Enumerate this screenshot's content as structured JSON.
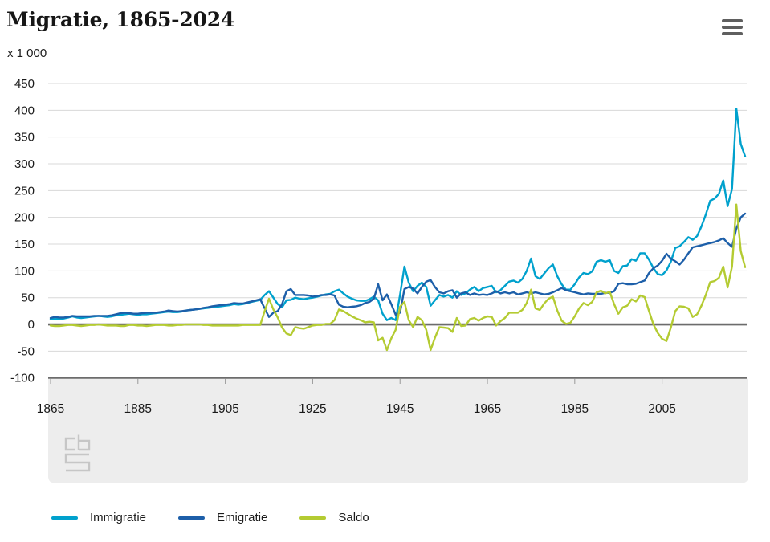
{
  "header": {
    "title": "Migratie, 1865-2024"
  },
  "icons": {
    "context_menu": "hamburger-icon",
    "watermark": "cbs-logo"
  },
  "palette": {
    "grid_line": "#d8d8d8",
    "zero_line": "#6c6c6c",
    "axis_line": "#6c6c6c",
    "tick_mark": "#999999",
    "footer_band": "#ededed",
    "logo_gray": "#c6c6c6",
    "text": "#1a1a1a"
  },
  "chart_data": {
    "type": "line",
    "title": "Migratie, 1865-2024",
    "y_unit_label": "x 1 000",
    "xlabel": "",
    "ylabel": "x 1 000",
    "ylim": [
      -100,
      450
    ],
    "grid": true,
    "legend_position": "bottom",
    "year_start": 1865,
    "year_end": 2024,
    "year_step": 1,
    "xticks": [
      1865,
      1885,
      1905,
      1925,
      1945,
      1965,
      1985,
      2005
    ],
    "yticks": [
      450,
      400,
      350,
      300,
      250,
      200,
      150,
      100,
      50,
      0,
      -50,
      -100
    ],
    "series": [
      {
        "name": "Immigratie",
        "color": "#00a1cd",
        "values": [
          10,
          11,
          10,
          11,
          13,
          15,
          13,
          12,
          13,
          14,
          15,
          16,
          15,
          14,
          15,
          17,
          18,
          19,
          20,
          19,
          18,
          19,
          19,
          20,
          21,
          22,
          23,
          24,
          23,
          23,
          24,
          26,
          27,
          28,
          29,
          30,
          31,
          32,
          33,
          34,
          35,
          36,
          38,
          37,
          38,
          40,
          42,
          44,
          46,
          55,
          62,
          50,
          38,
          32,
          45,
          46,
          50,
          48,
          47,
          49,
          50,
          52,
          54,
          56,
          57,
          62,
          65,
          58,
          52,
          48,
          45,
          44,
          44,
          47,
          52,
          45,
          20,
          8,
          12,
          8,
          55,
          108,
          78,
          62,
          72,
          78,
          70,
          35,
          45,
          55,
          52,
          55,
          50,
          62,
          55,
          58,
          65,
          70,
          62,
          68,
          70,
          72,
          60,
          64,
          72,
          80,
          82,
          78,
          85,
          100,
          123,
          90,
          85,
          95,
          105,
          112,
          90,
          75,
          65,
          65,
          75,
          88,
          96,
          94,
          99,
          117,
          120,
          117,
          120,
          100,
          96,
          109,
          110,
          122,
          119,
          133,
          133,
          121,
          105,
          94,
          92,
          101,
          117,
          143,
          146,
          154,
          163,
          158,
          165,
          183,
          205,
          231,
          235,
          244,
          269,
          221,
          253,
          403,
          337,
          314
        ]
      },
      {
        "name": "Emigratie",
        "color": "#1d5fa9",
        "values": [
          12,
          14,
          13,
          13,
          14,
          16,
          15,
          15,
          15,
          15,
          16,
          16,
          16,
          16,
          17,
          19,
          21,
          22,
          21,
          20,
          20,
          21,
          22,
          22,
          22,
          23,
          24,
          26,
          25,
          24,
          25,
          26,
          27,
          28,
          29,
          31,
          32,
          34,
          35,
          36,
          37,
          38,
          40,
          39,
          39,
          41,
          43,
          45,
          47,
          30,
          14,
          22,
          25,
          38,
          62,
          66,
          55,
          55,
          55,
          54,
          52,
          53,
          55,
          55,
          56,
          54,
          37,
          33,
          32,
          33,
          34,
          36,
          40,
          42,
          48,
          75,
          45,
          56,
          38,
          18,
          22,
          66,
          70,
          67,
          58,
          70,
          80,
          83,
          70,
          60,
          58,
          62,
          64,
          50,
          58,
          60,
          55,
          58,
          55,
          56,
          55,
          58,
          62,
          58,
          60,
          58,
          60,
          56,
          58,
          60,
          58,
          60,
          58,
          56,
          57,
          60,
          64,
          68,
          64,
          62,
          60,
          58,
          56,
          58,
          57,
          57,
          57,
          59,
          59,
          62,
          76,
          77,
          75,
          75,
          76,
          79,
          82,
          96,
          105,
          110,
          119,
          132,
          123,
          118,
          112,
          121,
          133,
          144,
          146,
          148,
          150,
          152,
          154,
          157,
          161,
          152,
          145,
          179,
          200,
          207
        ]
      },
      {
        "name": "Saldo",
        "color": "#b4cb32",
        "values": [
          -2,
          -3,
          -3,
          -2,
          -1,
          -1,
          -2,
          -3,
          -2,
          -1,
          -1,
          0,
          -1,
          -2,
          -2,
          -2,
          -3,
          -3,
          -1,
          -1,
          -2,
          -2,
          -3,
          -2,
          -1,
          -1,
          -1,
          -2,
          -2,
          -1,
          -1,
          0,
          0,
          0,
          0,
          -1,
          -1,
          -2,
          -2,
          -2,
          -2,
          -2,
          -2,
          -2,
          -1,
          -1,
          -1,
          -1,
          -1,
          25,
          48,
          28,
          13,
          -6,
          -17,
          -20,
          -5,
          -7,
          -8,
          -5,
          -2,
          -1,
          -1,
          1,
          1,
          8,
          28,
          25,
          20,
          15,
          11,
          8,
          4,
          5,
          4,
          -30,
          -25,
          -48,
          -26,
          -10,
          33,
          42,
          8,
          -5,
          14,
          8,
          -10,
          -48,
          -25,
          -5,
          -6,
          -7,
          -14,
          12,
          -3,
          -2,
          10,
          12,
          7,
          12,
          15,
          14,
          -2,
          6,
          12,
          22,
          22,
          22,
          27,
          40,
          65,
          30,
          27,
          39,
          48,
          52,
          26,
          7,
          1,
          3,
          15,
          30,
          40,
          36,
          42,
          60,
          63,
          58,
          61,
          38,
          20,
          32,
          35,
          47,
          43,
          54,
          51,
          25,
          0,
          -16,
          -27,
          -31,
          -6,
          25,
          34,
          33,
          30,
          14,
          19,
          35,
          55,
          79,
          81,
          87,
          108,
          69,
          108,
          224,
          137,
          107
        ]
      }
    ]
  }
}
